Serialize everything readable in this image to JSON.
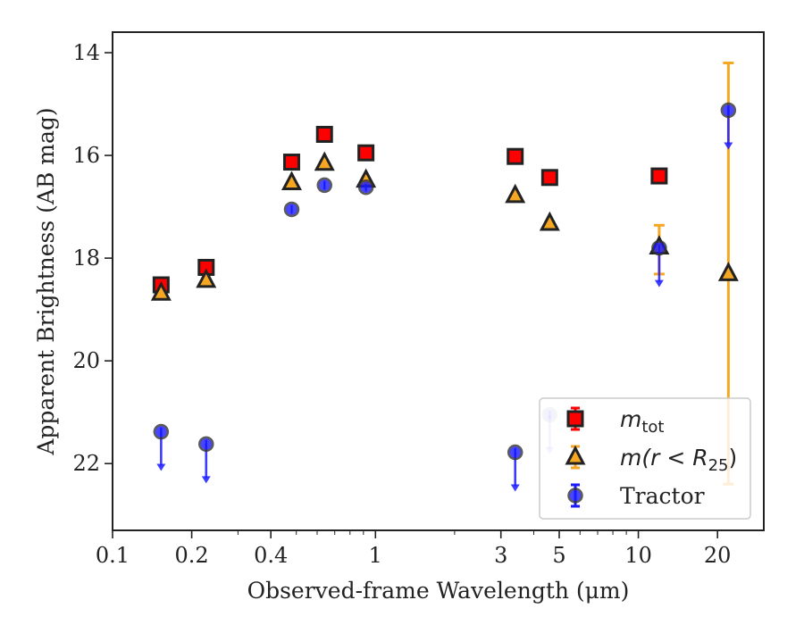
{
  "chart_data": {
    "type": "scatter",
    "xlabel": "Observed-frame Wavelength (μm)",
    "ylabel": "Apparent Brightness (AB mag)",
    "xscale": "log",
    "xlim": [
      0.1,
      30
    ],
    "ylim": [
      23.3,
      13.6
    ],
    "y_inverted": true,
    "x_ticks": [
      0.1,
      0.2,
      0.4,
      1,
      3,
      5,
      10,
      20
    ],
    "x_tick_labels": [
      "0.1",
      "0.2",
      "0.4",
      "1",
      "3",
      "5",
      "10",
      "20"
    ],
    "y_ticks": [
      14,
      16,
      18,
      20,
      22
    ],
    "y_tick_labels": [
      "14",
      "16",
      "18",
      "20",
      "22"
    ],
    "grid": false,
    "legend_position": "lower-right",
    "series": [
      {
        "name": "m_tot",
        "legend_label": "m",
        "legend_sub": "tot",
        "marker": "square",
        "color": "#ff0000",
        "edge_color": "#222222",
        "points": [
          {
            "x": 0.153,
            "y": 18.52
          },
          {
            "x": 0.227,
            "y": 18.18
          },
          {
            "x": 0.48,
            "y": 16.13
          },
          {
            "x": 0.64,
            "y": 15.59
          },
          {
            "x": 0.92,
            "y": 15.95
          },
          {
            "x": 3.4,
            "y": 16.02
          },
          {
            "x": 4.6,
            "y": 16.43
          },
          {
            "x": 12.0,
            "y": 16.4
          }
        ]
      },
      {
        "name": "m(r < R_25)",
        "legend_label": "m(r < R",
        "legend_sub": "25",
        "legend_suffix": ")",
        "marker": "triangle",
        "color": "#f5a623",
        "edge_color": "#222222",
        "points": [
          {
            "x": 0.153,
            "y": 18.68
          },
          {
            "x": 0.227,
            "y": 18.43
          },
          {
            "x": 0.48,
            "y": 16.53
          },
          {
            "x": 0.64,
            "y": 16.15
          },
          {
            "x": 0.92,
            "y": 16.48
          },
          {
            "x": 3.4,
            "y": 16.78
          },
          {
            "x": 4.6,
            "y": 17.32
          },
          {
            "x": 12.0,
            "y": 17.78,
            "err_low": 0.42,
            "err_high": 0.53
          },
          {
            "x": 22.0,
            "y": 18.3,
            "err_low": 4.1,
            "err_high": 4.1
          }
        ]
      },
      {
        "name": "Tractor",
        "legend_label": "Tractor",
        "marker": "circle",
        "color": "#1a1aff",
        "edge_color": "#333333",
        "points": [
          {
            "x": 0.153,
            "y": 21.38,
            "upper_limit": true
          },
          {
            "x": 0.227,
            "y": 21.62,
            "upper_limit": true
          },
          {
            "x": 0.48,
            "y": 17.05
          },
          {
            "x": 0.64,
            "y": 16.58
          },
          {
            "x": 0.92,
            "y": 16.62
          },
          {
            "x": 3.4,
            "y": 21.78,
            "upper_limit": true
          },
          {
            "x": 4.6,
            "y": 21.05,
            "upper_limit": true,
            "faded": true
          },
          {
            "x": 12.0,
            "y": 17.8,
            "upper_limit": true
          },
          {
            "x": 22.0,
            "y": 15.12,
            "upper_limit": true
          }
        ]
      }
    ]
  }
}
